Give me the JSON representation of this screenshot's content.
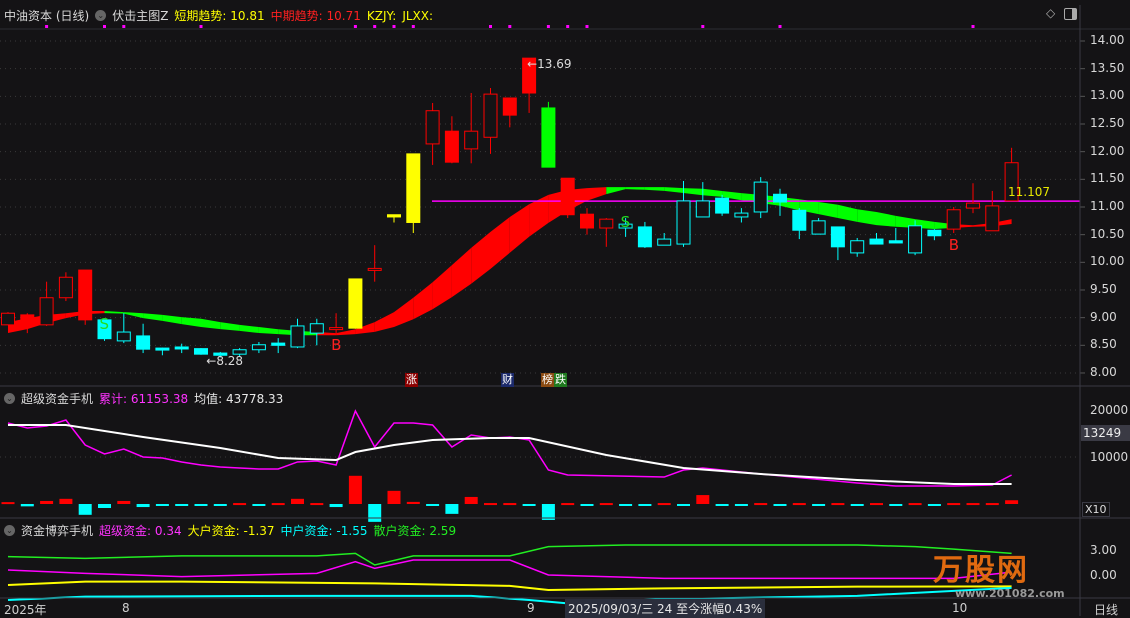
{
  "header": {
    "stock": "中油资本 (日线)",
    "indicator": "伏击主图Z",
    "short_label": "短期趋势:",
    "short_value": "10.81",
    "mid_label": "中期趋势:",
    "mid_value": "10.71",
    "kzjy": "KZJY:",
    "jlxx": "JLXX:"
  },
  "pane2": {
    "title": "超级资金手机",
    "sum_label": "累计:",
    "sum_value": "61153.38",
    "avg_label": "均值:",
    "avg_value": "43778.33",
    "axis": [
      "20000",
      "10000"
    ],
    "current": "13249",
    "scale": "X10"
  },
  "pane3": {
    "title": "资金博弈手机",
    "super_label": "超级资金:",
    "super_value": "0.34",
    "big_label": "大户资金:",
    "big_value": "-1.37",
    "mid_label": "中户资金:",
    "mid_value": "-1.55",
    "retail_label": "散户资金:",
    "retail_value": "2.59",
    "axis": [
      "3.00",
      "0.00"
    ]
  },
  "price_axis": [
    "14.00",
    "13.50",
    "13.00",
    "12.50",
    "12.00",
    "11.50",
    "11.00",
    "10.50",
    "10.00",
    "9.50",
    "9.00",
    "8.50",
    "8.00"
  ],
  "annotations": {
    "low": "←8.28",
    "high": "←13.69",
    "ref_value": "11.107",
    "ref_price": 11.107,
    "sell": "S",
    "buy": "B"
  },
  "events": [
    {
      "text": "涨",
      "color": "#8b0000"
    },
    {
      "text": "财",
      "color": "#1c2a6b"
    },
    {
      "text": "榜",
      "color": "#8a4a12"
    },
    {
      "text": "跌",
      "color": "#1f7a1f"
    }
  ],
  "bottom_axis": {
    "year": "2025年",
    "m8": "8",
    "m9": "9",
    "cursor": "2025/09/03/三 24 至今涨幅0.43%",
    "m10": "10",
    "period": "日线"
  },
  "logo": {
    "name": "万股网",
    "url": "www.201082.com"
  },
  "colors": {
    "up": "#ff0000",
    "down": "#00ffff",
    "limit": "#ffff00",
    "drop": "#00ff00",
    "ref": "#ff00ff",
    "bg": "#141315"
  },
  "chart_data": {
    "type": "candlestick",
    "ylim": [
      8.0,
      14.0
    ],
    "candles": [
      [
        8.87,
        9.1,
        8.87,
        9.08,
        "red",
        "hollow"
      ],
      [
        9.05,
        9.08,
        8.72,
        8.96,
        "red",
        "solid"
      ],
      [
        8.87,
        9.65,
        8.85,
        9.36,
        "red",
        "hollow"
      ],
      [
        9.36,
        9.82,
        9.3,
        9.73,
        "red",
        "hollow"
      ],
      [
        9.86,
        9.86,
        8.87,
        8.96,
        "red",
        "solid"
      ],
      [
        8.96,
        8.96,
        8.58,
        8.62,
        "cyan",
        "solid"
      ],
      [
        8.58,
        9.08,
        8.54,
        8.74,
        "cyan",
        "hollow"
      ],
      [
        8.67,
        8.89,
        8.36,
        8.43,
        "cyan",
        "solid"
      ],
      [
        8.45,
        8.46,
        8.32,
        8.44,
        "cyan",
        "solid"
      ],
      [
        8.47,
        8.53,
        8.36,
        8.45,
        "cyan",
        "solid"
      ],
      [
        8.44,
        8.45,
        8.33,
        8.34,
        "cyan",
        "solid"
      ],
      [
        8.36,
        8.38,
        8.28,
        8.32,
        "cyan",
        "solid"
      ],
      [
        8.34,
        8.45,
        8.3,
        8.42,
        "cyan",
        "hollow"
      ],
      [
        8.42,
        8.56,
        8.36,
        8.51,
        "cyan",
        "hollow"
      ],
      [
        8.54,
        8.63,
        8.36,
        8.5,
        "cyan",
        "solid"
      ],
      [
        8.47,
        8.98,
        8.45,
        8.85,
        "cyan",
        "hollow"
      ],
      [
        8.72,
        8.98,
        8.5,
        8.89,
        "cyan",
        "hollow"
      ],
      [
        8.81,
        9.08,
        8.72,
        8.82,
        "red",
        "hollow"
      ],
      [
        8.81,
        9.7,
        8.8,
        9.7,
        "yellow",
        "solid"
      ],
      [
        9.88,
        10.31,
        9.65,
        9.89,
        "red",
        "hollow"
      ],
      [
        10.82,
        10.86,
        10.72,
        10.86,
        "yellow",
        "solid"
      ],
      [
        10.72,
        11.96,
        10.53,
        11.96,
        "yellow",
        "solid"
      ],
      [
        12.14,
        12.88,
        11.76,
        12.74,
        "red",
        "hollow"
      ],
      [
        12.37,
        12.64,
        11.79,
        11.81,
        "red",
        "solid"
      ],
      [
        12.05,
        13.06,
        11.79,
        12.37,
        "red",
        "hollow"
      ],
      [
        12.26,
        13.15,
        11.96,
        13.04,
        "red",
        "hollow"
      ],
      [
        12.97,
        12.97,
        12.44,
        12.66,
        "red",
        "solid"
      ],
      [
        13.69,
        13.69,
        12.7,
        13.06,
        "red",
        "solid"
      ],
      [
        12.79,
        12.9,
        11.72,
        11.72,
        "green",
        "solid"
      ],
      [
        11.52,
        11.52,
        10.8,
        10.86,
        "red",
        "solid"
      ],
      [
        10.87,
        10.98,
        10.5,
        10.62,
        "red",
        "solid"
      ],
      [
        10.62,
        10.8,
        10.28,
        10.78,
        "red",
        "hollow"
      ],
      [
        10.62,
        10.8,
        10.46,
        10.69,
        "cyan",
        "hollow"
      ],
      [
        10.64,
        10.73,
        10.26,
        10.28,
        "cyan",
        "solid"
      ],
      [
        10.31,
        10.53,
        10.31,
        10.42,
        "cyan",
        "hollow"
      ],
      [
        10.33,
        11.47,
        10.28,
        11.11,
        "cyan",
        "hollow"
      ],
      [
        10.82,
        11.45,
        10.82,
        11.11,
        "cyan",
        "hollow"
      ],
      [
        11.16,
        11.22,
        10.84,
        10.89,
        "cyan",
        "solid"
      ],
      [
        10.82,
        10.98,
        10.72,
        10.89,
        "cyan",
        "hollow"
      ],
      [
        10.91,
        11.54,
        10.8,
        11.45,
        "cyan",
        "hollow"
      ],
      [
        11.23,
        11.33,
        10.84,
        11.09,
        "cyan",
        "solid"
      ],
      [
        10.94,
        10.98,
        10.42,
        10.58,
        "cyan",
        "solid"
      ],
      [
        10.51,
        10.8,
        10.51,
        10.75,
        "cyan",
        "hollow"
      ],
      [
        10.64,
        10.64,
        10.04,
        10.28,
        "cyan",
        "solid"
      ],
      [
        10.17,
        10.44,
        10.1,
        10.39,
        "cyan",
        "hollow"
      ],
      [
        10.42,
        10.53,
        10.33,
        10.33,
        "cyan",
        "solid"
      ],
      [
        10.39,
        10.62,
        10.35,
        10.35,
        "cyan",
        "solid"
      ],
      [
        10.17,
        10.76,
        10.13,
        10.66,
        "cyan",
        "hollow"
      ],
      [
        10.58,
        10.6,
        10.4,
        10.48,
        "cyan",
        "solid"
      ],
      [
        10.6,
        11.0,
        10.53,
        10.95,
        "red",
        "hollow"
      ],
      [
        10.98,
        11.43,
        10.89,
        11.07,
        "red",
        "hollow"
      ],
      [
        10.57,
        11.29,
        10.57,
        11.02,
        "red",
        "hollow"
      ],
      [
        11.11,
        12.07,
        11.11,
        11.8,
        "red",
        "hollow"
      ]
    ],
    "ribbon_upper": [
      8.92,
      8.99,
      9.05,
      9.08,
      9.12,
      9.12,
      9.1,
      9.08,
      9.05,
      9.01,
      8.98,
      8.92,
      8.87,
      8.83,
      8.79,
      8.76,
      8.74,
      8.72,
      8.79,
      8.92,
      9.1,
      9.36,
      9.64,
      9.95,
      10.26,
      10.55,
      10.82,
      11.05,
      11.22,
      11.31,
      11.34,
      11.36,
      11.36,
      11.36,
      11.36,
      11.34,
      11.33,
      11.29,
      11.25,
      11.22,
      11.18,
      11.14,
      11.09,
      11.04,
      10.96,
      10.91,
      10.84,
      10.78,
      10.73,
      10.69,
      10.67,
      10.71,
      10.78
    ],
    "ribbon_lower": [
      8.74,
      8.81,
      8.92,
      9.01,
      9.08,
      9.1,
      9.09,
      9.01,
      8.96,
      8.9,
      8.85,
      8.81,
      8.78,
      8.74,
      8.72,
      8.7,
      8.7,
      8.7,
      8.72,
      8.76,
      8.85,
      8.99,
      9.17,
      9.39,
      9.63,
      9.9,
      10.19,
      10.48,
      10.73,
      10.95,
      11.13,
      11.25,
      11.34,
      11.33,
      11.31,
      11.27,
      11.23,
      11.2,
      11.14,
      11.09,
      11.04,
      10.96,
      10.89,
      10.82,
      10.75,
      10.69,
      10.66,
      10.64,
      10.62,
      10.64,
      10.66,
      10.67,
      10.71
    ],
    "ribbon_colors": [
      "red",
      "red",
      "red",
      "red",
      "red",
      "red",
      "green",
      "green",
      "green",
      "green",
      "green",
      "green",
      "green",
      "green",
      "green",
      "green",
      "green",
      "red",
      "red",
      "red",
      "red",
      "red",
      "red",
      "red",
      "red",
      "red",
      "red",
      "red",
      "red",
      "red",
      "red",
      "red",
      "green",
      "green",
      "green",
      "green",
      "green",
      "green",
      "green",
      "green",
      "green",
      "green",
      "green",
      "green",
      "green",
      "green",
      "green",
      "green",
      "green",
      "green",
      "red",
      "red",
      "red"
    ],
    "signal_dots": [
      3,
      6,
      7,
      11,
      19,
      20,
      21,
      22,
      26,
      27,
      29,
      30,
      31,
      37,
      41,
      51
    ],
    "sell_signals": [
      6,
      33
    ],
    "buy_signals": [
      18,
      50
    ],
    "low_index": 12,
    "high_index": 28,
    "pane2": {
      "ylim": [
        0,
        22000
      ],
      "cumulative": [
        [
          1,
          17230
        ],
        [
          2,
          16170
        ],
        [
          3,
          16600
        ],
        [
          4,
          17870
        ],
        [
          5,
          12550
        ],
        [
          6,
          10640
        ],
        [
          7,
          11700
        ],
        [
          8,
          10000
        ],
        [
          9,
          9790
        ],
        [
          10,
          8940
        ],
        [
          11,
          8300
        ],
        [
          12,
          7870
        ],
        [
          13,
          7660
        ],
        [
          14,
          7450
        ],
        [
          15,
          7450
        ],
        [
          16,
          8940
        ],
        [
          17,
          9150
        ],
        [
          18,
          8300
        ],
        [
          19,
          19790
        ],
        [
          20,
          12130
        ],
        [
          21,
          17230
        ],
        [
          22,
          17230
        ],
        [
          23,
          16810
        ],
        [
          24,
          12130
        ],
        [
          25,
          14680
        ],
        [
          26,
          14040
        ],
        [
          27,
          14250
        ],
        [
          28,
          13620
        ],
        [
          29,
          7230
        ],
        [
          30,
          6170
        ],
        [
          35,
          5740
        ],
        [
          36,
          7230
        ],
        [
          37,
          7660
        ],
        [
          40,
          6380
        ],
        [
          45,
          4470
        ],
        [
          47,
          3830
        ],
        [
          50,
          3830
        ],
        [
          52,
          4040
        ],
        [
          53,
          6170
        ]
      ],
      "average": [
        [
          1,
          16810
        ],
        [
          4,
          16810
        ],
        [
          8,
          14250
        ],
        [
          12,
          11910
        ],
        [
          15,
          9790
        ],
        [
          18,
          9360
        ],
        [
          19,
          11060
        ],
        [
          21,
          12550
        ],
        [
          23,
          13620
        ],
        [
          26,
          14040
        ],
        [
          28,
          14040
        ],
        [
          32,
          10430
        ],
        [
          36,
          7660
        ],
        [
          40,
          6380
        ],
        [
          45,
          5110
        ],
        [
          50,
          4260
        ],
        [
          53,
          4260
        ]
      ],
      "bars": [
        400,
        -500,
        650,
        1100,
        -2300,
        -850,
        650,
        -650,
        -200,
        -200,
        -200,
        -200,
        200,
        -200,
        200,
        1100,
        200,
        -650,
        6000,
        -3800,
        2800,
        450,
        -200,
        -2100,
        1500,
        200,
        200,
        -200,
        -3400,
        200,
        -200,
        200,
        -200,
        -200,
        200,
        -200,
        1900,
        -200,
        -200,
        200,
        -200,
        200,
        -200,
        200,
        -200,
        200,
        -200,
        200,
        -200,
        200,
        200,
        200,
        800
      ]
    },
    "pane3": {
      "ylim": [
        -3.5,
        4.5
      ],
      "retail": [
        [
          1,
          2.2
        ],
        [
          5,
          2.0
        ],
        [
          10,
          2.3
        ],
        [
          17,
          2.3
        ],
        [
          19,
          2.6
        ],
        [
          20,
          1.2
        ],
        [
          22,
          2.3
        ],
        [
          27,
          2.3
        ],
        [
          29,
          3.4
        ],
        [
          33,
          3.6
        ],
        [
          45,
          3.6
        ],
        [
          48,
          3.4
        ],
        [
          50,
          3.1
        ],
        [
          53,
          2.59
        ]
      ],
      "super": [
        [
          1,
          0.6
        ],
        [
          5,
          0.2
        ],
        [
          10,
          -0.2
        ],
        [
          17,
          0.2
        ],
        [
          19,
          1.6
        ],
        [
          20,
          0.8
        ],
        [
          22,
          1.8
        ],
        [
          27,
          1.8
        ],
        [
          29,
          0.0
        ],
        [
          35,
          -0.4
        ],
        [
          45,
          -0.4
        ],
        [
          50,
          -0.4
        ],
        [
          53,
          0.34
        ]
      ],
      "big": [
        [
          1,
          -1.2
        ],
        [
          5,
          -0.8
        ],
        [
          10,
          -0.8
        ],
        [
          20,
          -1.0
        ],
        [
          27,
          -1.3
        ],
        [
          29,
          -1.8
        ],
        [
          35,
          -1.6
        ],
        [
          45,
          -1.4
        ],
        [
          53,
          -1.37
        ]
      ],
      "mid": [
        [
          1,
          -3.0
        ],
        [
          5,
          -2.6
        ],
        [
          17,
          -2.5
        ],
        [
          25,
          -2.5
        ],
        [
          28,
          -3.0
        ],
        [
          30,
          -3.4
        ],
        [
          35,
          -2.9
        ],
        [
          45,
          -2.5
        ],
        [
          53,
          -1.55
        ]
      ]
    }
  }
}
